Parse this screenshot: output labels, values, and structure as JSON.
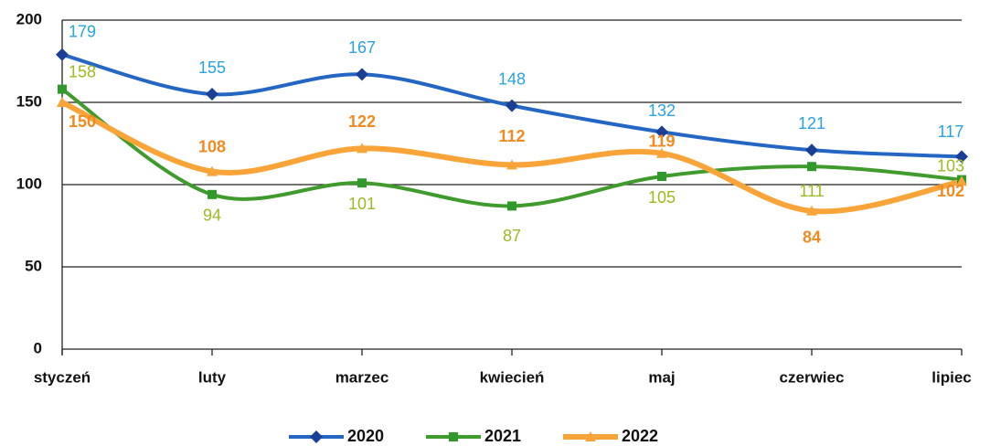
{
  "chart_data": {
    "type": "line",
    "categories": [
      "styczeń",
      "luty",
      "marzec",
      "kwiecień",
      "maj",
      "czerwiec",
      "lipiec"
    ],
    "series": [
      {
        "name": "2020",
        "color": "#2466c4",
        "values": [
          179,
          155,
          167,
          148,
          132,
          121,
          117
        ]
      },
      {
        "name": "2021",
        "color": "#3e9b2c",
        "values": [
          158,
          94,
          101,
          87,
          105,
          111,
          103
        ]
      },
      {
        "name": "2022",
        "color": "#f9a438",
        "values": [
          150,
          108,
          122,
          112,
          119,
          84,
          102
        ]
      }
    ],
    "ylim": [
      0,
      200
    ],
    "yticks": [
      0,
      50,
      100,
      150,
      200
    ],
    "grid": true,
    "legend": "bottom",
    "smooth": true
  }
}
